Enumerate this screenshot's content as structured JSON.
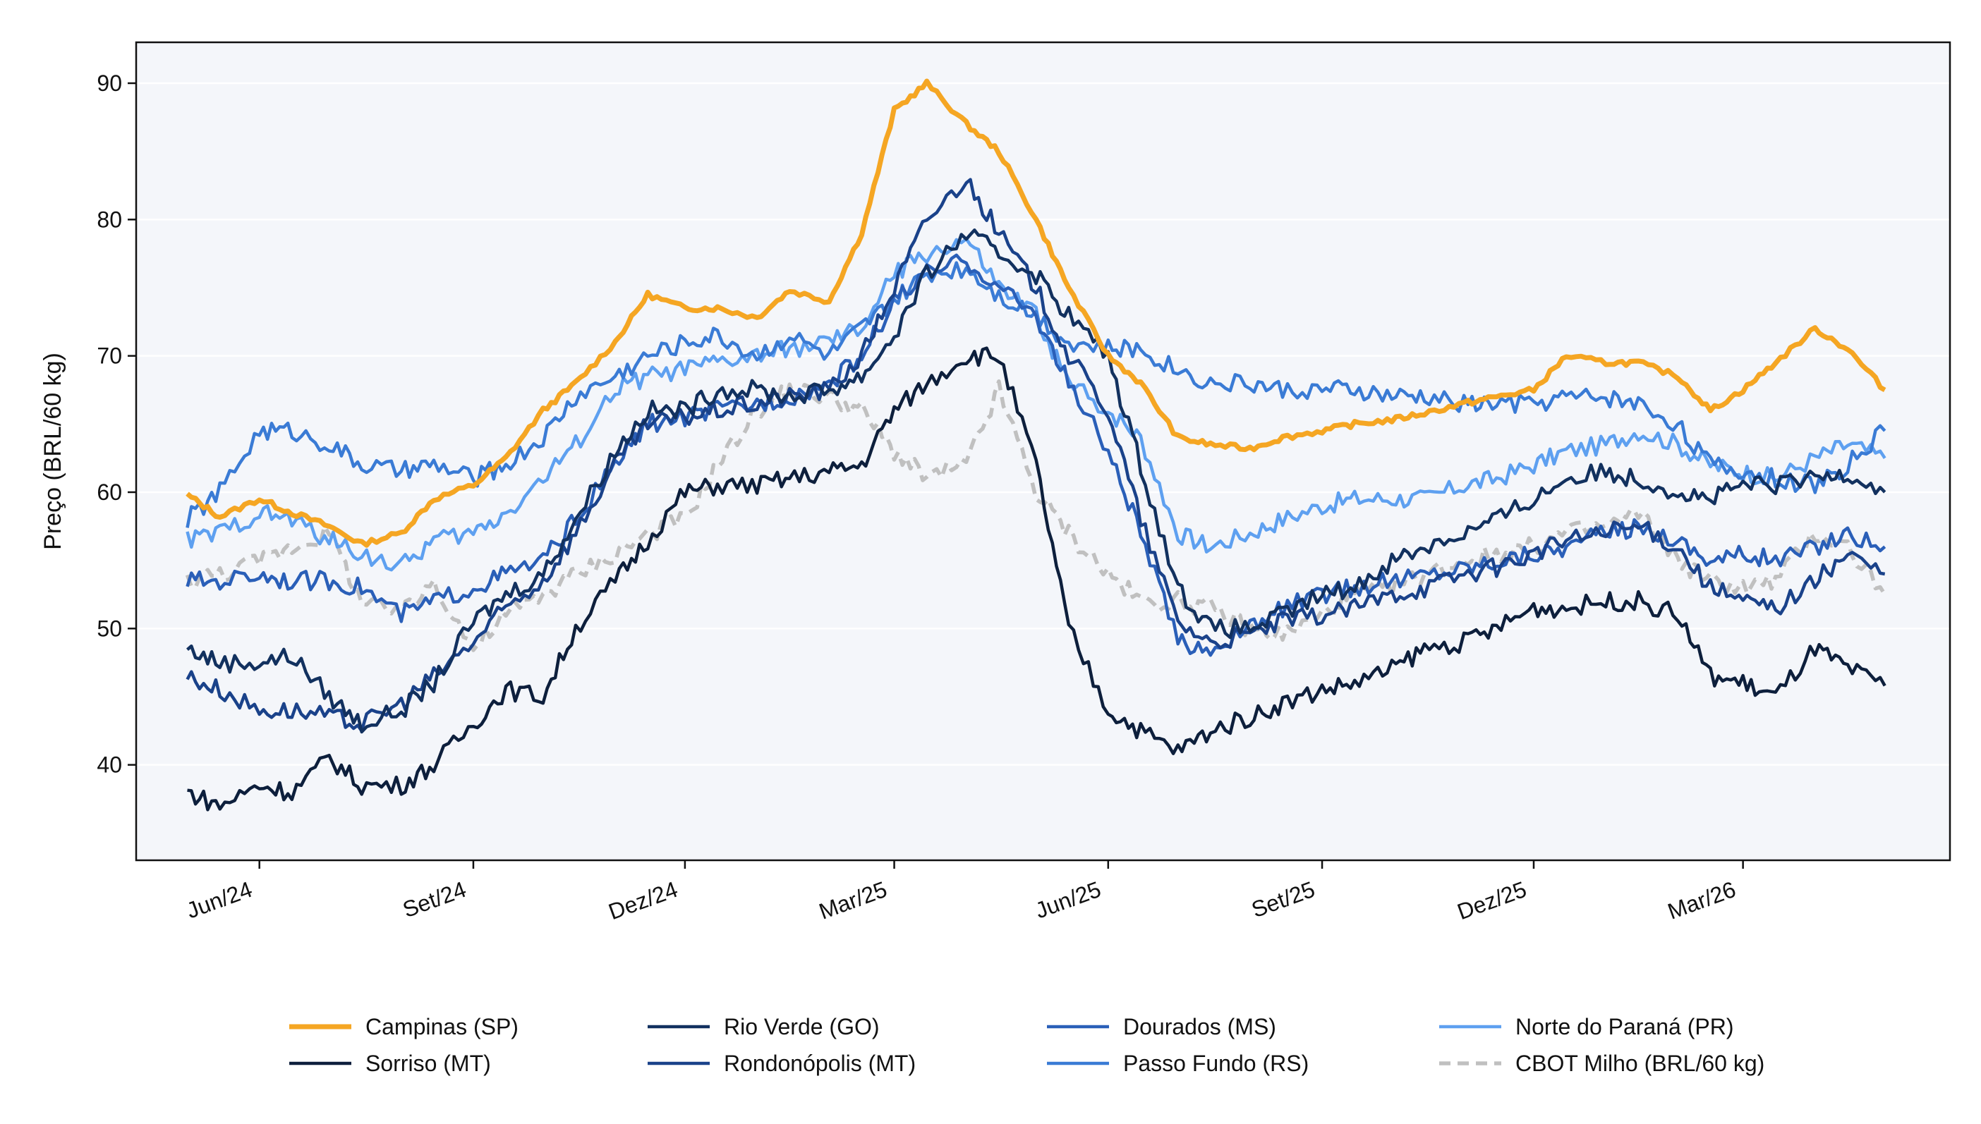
{
  "chart_data": {
    "type": "line",
    "ylabel": "Preço (BRL/60 kg)",
    "xlabel": "",
    "ylim": [
      33,
      93
    ],
    "xlim": [
      "2024-04-09",
      "2026-05-29"
    ],
    "grid": "horizontal",
    "legend_position": "bottom",
    "background_color": "#f4f6fa",
    "yticks": [
      40,
      50,
      60,
      70,
      80,
      90
    ],
    "xticks": [
      {
        "date": "2024-06-01",
        "label": "Jun/24"
      },
      {
        "date": "2024-09-01",
        "label": "Set/24"
      },
      {
        "date": "2024-12-01",
        "label": "Dez/24"
      },
      {
        "date": "2025-03-01",
        "label": "Mar/25"
      },
      {
        "date": "2025-06-01",
        "label": "Jun/25"
      },
      {
        "date": "2025-09-01",
        "label": "Set/25"
      },
      {
        "date": "2025-12-01",
        "label": "Dez/25"
      },
      {
        "date": "2026-03-01",
        "label": "Mar/26"
      }
    ],
    "series": [
      {
        "name": "Campinas (SP)",
        "color": "#f5a623",
        "width": 7,
        "dash": "",
        "x": [
          "2024-05-01",
          "2024-05-15",
          "2024-06-01",
          "2024-06-15",
          "2024-07-01",
          "2024-07-15",
          "2024-08-01",
          "2024-08-15",
          "2024-09-01",
          "2024-09-15",
          "2024-10-01",
          "2024-10-15",
          "2024-11-01",
          "2024-11-15",
          "2024-12-01",
          "2024-12-15",
          "2025-01-01",
          "2025-01-15",
          "2025-02-01",
          "2025-02-15",
          "2025-03-01",
          "2025-03-15",
          "2025-04-01",
          "2025-04-15",
          "2025-05-01",
          "2025-05-15",
          "2025-06-01",
          "2025-06-15",
          "2025-07-01",
          "2025-07-15",
          "2025-08-01",
          "2025-08-15",
          "2025-09-01",
          "2025-09-15",
          "2025-10-01",
          "2025-10-15",
          "2025-11-01",
          "2025-11-15",
          "2025-12-01",
          "2025-12-15",
          "2026-01-01",
          "2026-01-15",
          "2026-02-01",
          "2026-02-15",
          "2026-03-01",
          "2026-03-15",
          "2026-04-01",
          "2026-04-15",
          "2026-05-01"
        ],
        "values": [
          59.8,
          58.2,
          59.5,
          58.5,
          57.5,
          56.2,
          57.0,
          59.5,
          60.5,
          62.5,
          66.0,
          68.0,
          71.0,
          74.5,
          73.5,
          73.5,
          72.8,
          74.8,
          74.0,
          79.0,
          88.0,
          90.0,
          87.0,
          85.0,
          80.0,
          75.0,
          70.0,
          68.0,
          64.0,
          63.5,
          63.2,
          64.0,
          64.5,
          65.0,
          65.3,
          65.8,
          66.5,
          67.0,
          67.5,
          70.0,
          69.5,
          69.5,
          68.5,
          66.0,
          67.5,
          69.5,
          72.0,
          70.5,
          67.5
        ]
      },
      {
        "name": "Sorriso (MT)",
        "color": "#0d1f3c",
        "width": 4.5,
        "dash": "",
        "x": [
          "2024-05-01",
          "2024-05-15",
          "2024-06-01",
          "2024-06-15",
          "2024-07-01",
          "2024-07-15",
          "2024-08-01",
          "2024-08-15",
          "2024-09-01",
          "2024-09-15",
          "2024-10-01",
          "2024-10-15",
          "2024-11-01",
          "2024-11-15",
          "2024-12-01",
          "2024-12-15",
          "2025-01-01",
          "2025-01-15",
          "2025-02-01",
          "2025-02-15",
          "2025-03-01",
          "2025-03-15",
          "2025-04-01",
          "2025-04-15",
          "2025-05-01",
          "2025-05-15",
          "2025-06-01",
          "2025-06-15",
          "2025-07-01",
          "2025-07-15",
          "2025-08-01",
          "2025-08-15",
          "2025-09-01",
          "2025-09-15",
          "2025-10-01",
          "2025-10-15",
          "2025-11-01",
          "2025-11-15",
          "2025-12-01",
          "2025-12-15",
          "2026-01-01",
          "2026-01-15",
          "2026-02-01",
          "2026-02-15",
          "2026-03-01",
          "2026-03-15",
          "2026-04-01",
          "2026-04-15",
          "2026-05-01"
        ],
        "values": [
          38.0,
          37.0,
          38.5,
          38.0,
          40.5,
          38.5,
          38.5,
          40.0,
          43.0,
          45.5,
          45.0,
          50.0,
          53.5,
          56.5,
          60.0,
          60.5,
          60.5,
          61.0,
          61.5,
          62.0,
          66.0,
          68.0,
          70.0,
          70.0,
          62.0,
          50.0,
          44.0,
          42.5,
          41.0,
          42.5,
          43.5,
          44.5,
          45.5,
          46.0,
          47.0,
          48.5,
          49.0,
          50.0,
          51.5,
          51.5,
          52.0,
          52.0,
          51.0,
          46.5,
          46.0,
          45.0,
          48.5,
          47.0,
          45.8
        ]
      },
      {
        "name": "Rio Verde (GO)",
        "color": "#12315f",
        "width": 4.5,
        "dash": "",
        "x": [
          "2024-05-01",
          "2024-05-15",
          "2024-06-01",
          "2024-06-15",
          "2024-07-01",
          "2024-07-15",
          "2024-08-01",
          "2024-08-15",
          "2024-09-01",
          "2024-09-15",
          "2024-10-01",
          "2024-10-15",
          "2024-11-01",
          "2024-11-15",
          "2024-12-01",
          "2024-12-15",
          "2025-01-01",
          "2025-01-15",
          "2025-02-01",
          "2025-02-15",
          "2025-03-01",
          "2025-03-15",
          "2025-04-01",
          "2025-04-15",
          "2025-05-01",
          "2025-05-15",
          "2025-06-01",
          "2025-06-15",
          "2025-07-01",
          "2025-07-15",
          "2025-08-01",
          "2025-08-15",
          "2025-09-01",
          "2025-09-15",
          "2025-10-01",
          "2025-10-15",
          "2025-11-01",
          "2025-11-15",
          "2025-12-01",
          "2025-12-15",
          "2026-01-01",
          "2026-01-15",
          "2026-02-01",
          "2026-02-15",
          "2026-03-01",
          "2026-03-15",
          "2026-04-01",
          "2026-04-15",
          "2026-05-01"
        ],
        "values": [
          48.5,
          47.5,
          47.5,
          48.0,
          45.0,
          43.0,
          44.0,
          46.0,
          50.5,
          52.5,
          54.0,
          58.0,
          63.0,
          66.0,
          66.0,
          67.5,
          67.5,
          67.0,
          67.5,
          68.5,
          71.5,
          76.0,
          79.0,
          77.5,
          76.0,
          73.0,
          70.0,
          62.0,
          53.0,
          50.0,
          50.0,
          51.0,
          52.5,
          53.0,
          55.0,
          56.0,
          57.0,
          58.0,
          59.5,
          61.0,
          61.5,
          61.0,
          60.0,
          59.5,
          60.5,
          60.5,
          61.0,
          61.5,
          60.0
        ]
      },
      {
        "name": "Rondonópolis (MT)",
        "color": "#1a428a",
        "width": 4.5,
        "dash": "",
        "x": [
          "2024-05-01",
          "2024-05-15",
          "2024-06-01",
          "2024-06-15",
          "2024-07-01",
          "2024-07-15",
          "2024-08-01",
          "2024-08-15",
          "2024-09-01",
          "2024-09-15",
          "2024-10-01",
          "2024-10-15",
          "2024-11-01",
          "2024-11-15",
          "2024-12-01",
          "2024-12-15",
          "2025-01-01",
          "2025-01-15",
          "2025-02-01",
          "2025-02-15",
          "2025-03-01",
          "2025-03-15",
          "2025-04-01",
          "2025-04-15",
          "2025-05-01",
          "2025-05-15",
          "2025-06-01",
          "2025-06-15",
          "2025-07-01",
          "2025-07-15",
          "2025-08-01",
          "2025-08-15",
          "2025-09-01",
          "2025-09-15",
          "2025-10-01",
          "2025-10-15",
          "2025-11-01",
          "2025-11-15",
          "2025-12-01",
          "2025-12-15",
          "2026-01-01",
          "2026-01-15",
          "2026-02-01",
          "2026-02-15",
          "2026-03-01",
          "2026-03-15",
          "2026-04-01",
          "2026-04-15",
          "2026-05-01"
        ],
        "values": [
          46.5,
          45.5,
          44.0,
          44.0,
          43.5,
          43.0,
          44.5,
          46.5,
          49.0,
          51.5,
          53.5,
          57.0,
          62.0,
          65.0,
          65.5,
          66.0,
          66.5,
          67.0,
          67.5,
          70.0,
          75.0,
          80.0,
          83.0,
          79.0,
          75.0,
          70.0,
          66.0,
          58.0,
          50.5,
          49.0,
          49.5,
          50.5,
          51.0,
          51.5,
          52.5,
          53.0,
          54.0,
          54.5,
          55.5,
          56.5,
          57.0,
          57.5,
          56.0,
          53.0,
          52.0,
          51.5,
          53.5,
          55.5,
          54.0
        ]
      },
      {
        "name": "Dourados (MS)",
        "color": "#2a5fb8",
        "width": 4.5,
        "dash": "",
        "x": [
          "2024-05-01",
          "2024-05-15",
          "2024-06-01",
          "2024-06-15",
          "2024-07-01",
          "2024-07-15",
          "2024-08-01",
          "2024-08-15",
          "2024-09-01",
          "2024-09-15",
          "2024-10-01",
          "2024-10-15",
          "2024-11-01",
          "2024-11-15",
          "2024-12-01",
          "2024-12-15",
          "2025-01-01",
          "2025-01-15",
          "2025-02-01",
          "2025-02-15",
          "2025-03-01",
          "2025-03-15",
          "2025-04-01",
          "2025-04-15",
          "2025-05-01",
          "2025-05-15",
          "2025-06-01",
          "2025-06-15",
          "2025-07-01",
          "2025-07-15",
          "2025-08-01",
          "2025-08-15",
          "2025-09-01",
          "2025-09-15",
          "2025-10-01",
          "2025-10-15",
          "2025-11-01",
          "2025-11-15",
          "2025-12-01",
          "2025-12-15",
          "2026-01-01",
          "2026-01-15",
          "2026-02-01",
          "2026-02-15",
          "2026-03-01",
          "2026-03-15",
          "2026-04-01",
          "2026-04-15",
          "2026-05-01"
        ],
        "values": [
          53.5,
          53.5,
          54.0,
          53.5,
          53.5,
          53.0,
          51.0,
          52.0,
          53.0,
          54.0,
          55.0,
          58.0,
          62.0,
          65.0,
          65.5,
          66.0,
          66.5,
          67.0,
          68.0,
          70.0,
          74.0,
          76.0,
          77.0,
          75.0,
          73.0,
          68.0,
          63.0,
          57.0,
          49.0,
          48.5,
          50.0,
          51.5,
          52.5,
          53.0,
          53.5,
          54.0,
          54.5,
          55.0,
          55.5,
          56.0,
          57.0,
          57.5,
          56.5,
          55.0,
          55.5,
          55.0,
          56.0,
          57.0,
          56.0
        ]
      },
      {
        "name": "Passo Fundo (RS)",
        "color": "#3a7bd5",
        "width": 4.5,
        "dash": "",
        "x": [
          "2024-05-01",
          "2024-05-15",
          "2024-06-01",
          "2024-06-15",
          "2024-07-01",
          "2024-07-15",
          "2024-08-01",
          "2024-08-15",
          "2024-09-01",
          "2024-09-15",
          "2024-10-01",
          "2024-10-15",
          "2024-11-01",
          "2024-11-15",
          "2024-12-01",
          "2024-12-15",
          "2025-01-01",
          "2025-01-15",
          "2025-02-01",
          "2025-02-15",
          "2025-03-01",
          "2025-03-15",
          "2025-04-01",
          "2025-04-15",
          "2025-05-01",
          "2025-05-15",
          "2025-06-01",
          "2025-06-15",
          "2025-07-01",
          "2025-07-15",
          "2025-08-01",
          "2025-08-15",
          "2025-09-01",
          "2025-09-15",
          "2025-10-01",
          "2025-10-15",
          "2025-11-01",
          "2025-11-15",
          "2025-12-01",
          "2025-12-15",
          "2026-01-01",
          "2026-01-15",
          "2026-02-01",
          "2026-02-15",
          "2026-03-01",
          "2026-03-15",
          "2026-04-01",
          "2026-04-15",
          "2026-05-01"
        ],
        "values": [
          58.0,
          60.0,
          64.5,
          64.5,
          63.5,
          62.0,
          61.5,
          62.0,
          61.0,
          62.0,
          64.0,
          67.0,
          68.5,
          70.0,
          71.0,
          71.5,
          70.0,
          71.5,
          70.0,
          72.0,
          74.0,
          76.0,
          76.5,
          74.5,
          73.0,
          71.0,
          70.5,
          70.5,
          69.0,
          68.0,
          68.0,
          67.5,
          67.5,
          67.5,
          67.0,
          67.0,
          66.5,
          66.5,
          66.5,
          67.0,
          67.0,
          66.5,
          65.0,
          62.0,
          61.5,
          61.0,
          60.5,
          62.0,
          64.5
        ]
      },
      {
        "name": "Norte do Paraná (PR)",
        "color": "#5ea0f0",
        "width": 4.5,
        "dash": "",
        "x": [
          "2024-05-01",
          "2024-05-15",
          "2024-06-01",
          "2024-06-15",
          "2024-07-01",
          "2024-07-15",
          "2024-08-01",
          "2024-08-15",
          "2024-09-01",
          "2024-09-15",
          "2024-10-01",
          "2024-10-15",
          "2024-11-01",
          "2024-11-15",
          "2024-12-01",
          "2024-12-15",
          "2025-01-01",
          "2025-01-15",
          "2025-02-01",
          "2025-02-15",
          "2025-03-01",
          "2025-03-15",
          "2025-04-01",
          "2025-04-15",
          "2025-05-01",
          "2025-05-15",
          "2025-06-01",
          "2025-06-15",
          "2025-07-01",
          "2025-07-15",
          "2025-08-01",
          "2025-08-15",
          "2025-09-01",
          "2025-09-15",
          "2025-10-01",
          "2025-10-15",
          "2025-11-01",
          "2025-11-15",
          "2025-12-01",
          "2025-12-15",
          "2026-01-01",
          "2026-01-15",
          "2026-02-01",
          "2026-02-15",
          "2026-03-01",
          "2026-03-15",
          "2026-04-01",
          "2026-04-15",
          "2026-05-01"
        ],
        "values": [
          56.5,
          57.0,
          58.5,
          58.0,
          56.5,
          55.5,
          54.5,
          56.5,
          57.0,
          58.5,
          61.0,
          63.5,
          67.5,
          68.5,
          69.0,
          69.5,
          70.0,
          70.5,
          71.0,
          72.0,
          76.0,
          77.5,
          78.5,
          75.0,
          73.0,
          68.0,
          66.0,
          64.0,
          57.0,
          56.0,
          57.0,
          58.0,
          59.0,
          59.5,
          59.5,
          59.5,
          60.5,
          61.0,
          62.0,
          63.0,
          63.5,
          64.5,
          63.5,
          62.0,
          61.5,
          61.0,
          62.5,
          63.5,
          62.5
        ]
      },
      {
        "name": "CBOT Milho (BRL/60 kg)",
        "color": "#c0c0c0",
        "width": 5.5,
        "dash": "16,10",
        "x": [
          "2024-05-01",
          "2024-05-15",
          "2024-06-01",
          "2024-06-15",
          "2024-07-01",
          "2024-07-15",
          "2024-08-01",
          "2024-08-15",
          "2024-09-01",
          "2024-09-15",
          "2024-10-01",
          "2024-10-15",
          "2024-11-01",
          "2024-11-15",
          "2024-12-01",
          "2024-12-15",
          "2025-01-01",
          "2025-01-15",
          "2025-02-01",
          "2025-02-15",
          "2025-03-01",
          "2025-03-15",
          "2025-04-01",
          "2025-04-15",
          "2025-05-01",
          "2025-05-15",
          "2025-06-01",
          "2025-06-15",
          "2025-07-01",
          "2025-07-15",
          "2025-08-01",
          "2025-08-15",
          "2025-09-01",
          "2025-09-15",
          "2025-10-01",
          "2025-10-15",
          "2025-11-01",
          "2025-11-15",
          "2025-12-01",
          "2025-12-15",
          "2026-01-01",
          "2026-01-15",
          "2026-02-01",
          "2026-02-15",
          "2026-03-01",
          "2026-03-15",
          "2026-04-01",
          "2026-04-15",
          "2026-05-01"
        ],
        "values": [
          53.5,
          54.0,
          55.0,
          56.0,
          57.0,
          52.0,
          51.0,
          53.5,
          48.5,
          51.0,
          52.5,
          54.0,
          55.5,
          57.0,
          58.0,
          62.0,
          66.0,
          67.5,
          67.0,
          66.0,
          63.0,
          61.0,
          62.0,
          67.5,
          60.0,
          57.0,
          54.0,
          52.0,
          52.0,
          51.5,
          50.0,
          49.5,
          51.0,
          52.5,
          53.0,
          54.0,
          55.0,
          55.5,
          56.0,
          57.0,
          57.5,
          58.5,
          55.0,
          53.5,
          53.0,
          53.5,
          57.0,
          56.0,
          52.5
        ]
      }
    ]
  }
}
